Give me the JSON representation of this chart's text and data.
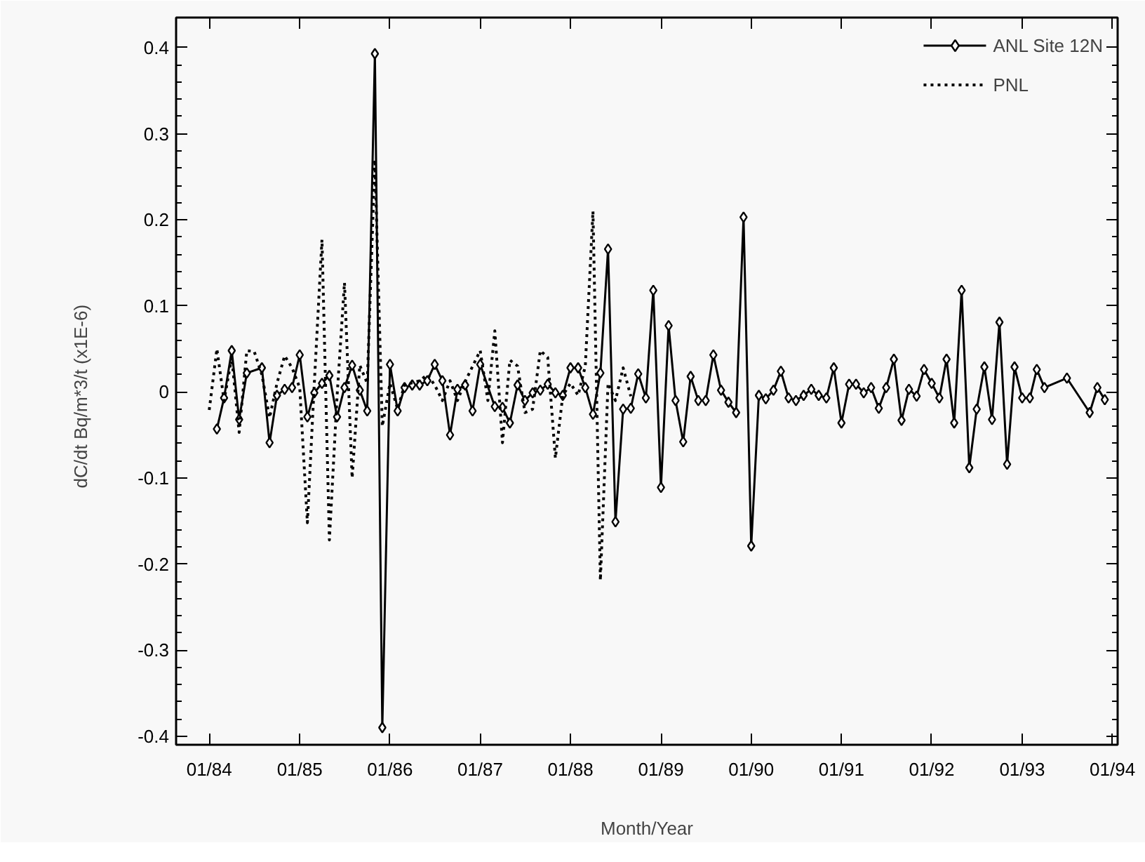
{
  "chart_data": {
    "type": "line",
    "xlabel": "Month/Year",
    "ylabel": "dC/dt    Bq/m*3/t    (x1E-6)",
    "xlim": [
      "1983-08-20",
      "1994-01-22"
    ],
    "ylim": [
      -0.41,
      0.435
    ],
    "xticks": [
      {
        "value": "1984-01",
        "label": "01/84"
      },
      {
        "value": "1985-01",
        "label": "01/85"
      },
      {
        "value": "1986-01",
        "label": "01/86"
      },
      {
        "value": "1987-01",
        "label": "01/87"
      },
      {
        "value": "1988-01",
        "label": "01/88"
      },
      {
        "value": "1989-01",
        "label": "01/89"
      },
      {
        "value": "1990-01",
        "label": "01/90"
      },
      {
        "value": "1991-01",
        "label": "01/91"
      },
      {
        "value": "1992-01",
        "label": "01/92"
      },
      {
        "value": "1993-01",
        "label": "01/93"
      },
      {
        "value": "1994-01",
        "label": "01/94"
      }
    ],
    "yticks": [
      -0.4,
      -0.3,
      -0.2,
      -0.1,
      0,
      0.1,
      0.2,
      0.3,
      0.4
    ],
    "legend": "top right",
    "series": [
      {
        "name": "ANL Site 12N",
        "color": "#000000",
        "marker": "diamond",
        "line_style": "solid",
        "x": [
          "1984-02",
          "1984-03",
          "1984-04",
          "1984-05",
          "1984-06",
          "1984-08",
          "1984-09",
          "1984-10",
          "1984-11",
          "1984-12",
          "1985-01",
          "1985-02",
          "1985-03",
          "1985-04",
          "1985-05",
          "1985-06",
          "1985-07",
          "1985-08",
          "1985-09",
          "1985-10",
          "1985-11",
          "1985-12",
          "1986-01",
          "1986-02",
          "1986-03",
          "1986-04",
          "1986-05",
          "1986-06",
          "1986-07",
          "1986-08",
          "1986-09",
          "1986-10",
          "1986-11",
          "1986-12",
          "1987-01",
          "1987-03",
          "1987-04",
          "1987-05",
          "1987-06",
          "1987-07",
          "1987-08",
          "1987-09",
          "1987-10",
          "1987-11",
          "1987-12",
          "1988-01",
          "1988-02",
          "1988-03",
          "1988-04",
          "1988-05",
          "1988-06",
          "1988-07",
          "1988-08",
          "1988-09",
          "1988-10",
          "1988-11",
          "1988-12",
          "1989-01",
          "1989-02",
          "1989-03",
          "1989-04",
          "1989-05",
          "1989-06",
          "1989-07",
          "1989-08",
          "1989-09",
          "1989-10",
          "1989-11",
          "1989-12",
          "1990-01",
          "1990-02",
          "1990-03",
          "1990-04",
          "1990-05",
          "1990-06",
          "1990-07",
          "1990-08",
          "1990-09",
          "1990-10",
          "1990-11",
          "1990-12",
          "1991-01",
          "1991-02",
          "1991-03",
          "1991-04",
          "1991-05",
          "1991-06",
          "1991-07",
          "1991-08",
          "1991-09",
          "1991-10",
          "1991-11",
          "1991-12",
          "1992-01",
          "1992-02",
          "1992-03",
          "1992-04",
          "1992-05",
          "1992-06",
          "1992-07",
          "1992-08",
          "1992-09",
          "1992-10",
          "1992-11",
          "1992-12",
          "1993-01",
          "1993-02",
          "1993-03",
          "1993-04",
          "1993-07",
          "1993-10",
          "1993-11",
          "1993-12"
        ],
        "values": [
          -0.043,
          -0.007,
          0.048,
          -0.032,
          0.022,
          0.028,
          -0.059,
          -0.004,
          0.003,
          0.005,
          0.043,
          -0.029,
          -0.001,
          0.01,
          0.019,
          -0.029,
          0.005,
          0.031,
          0.002,
          -0.022,
          0.393,
          -0.39,
          0.032,
          -0.022,
          0.005,
          0.008,
          0.008,
          0.013,
          0.032,
          0.013,
          -0.05,
          0.003,
          0.008,
          -0.022,
          0.032,
          -0.017,
          -0.018,
          -0.036,
          0.008,
          -0.01,
          -0.001,
          0.002,
          0.009,
          -0.001,
          -0.004,
          0.028,
          0.028,
          0.005,
          -0.026,
          0.022,
          0.166,
          -0.151,
          -0.02,
          -0.019,
          0.021,
          -0.007,
          0.118,
          -0.111,
          0.077,
          -0.01,
          -0.058,
          0.018,
          -0.01,
          -0.01,
          0.043,
          0.002,
          -0.012,
          -0.024,
          0.203,
          -0.179,
          -0.004,
          -0.008,
          0.002,
          0.024,
          -0.007,
          -0.01,
          -0.004,
          0.003,
          -0.004,
          -0.007,
          0.028,
          -0.036,
          0.009,
          0.009,
          -0.001,
          0.005,
          -0.019,
          0.005,
          0.038,
          -0.033,
          0.003,
          -0.005,
          0.026,
          0.01,
          -0.007,
          0.038,
          -0.036,
          0.118,
          -0.088,
          -0.02,
          0.029,
          -0.032,
          0.081,
          -0.084,
          0.029,
          -0.007,
          -0.007,
          0.026,
          0.005,
          0.016,
          -0.024,
          0.005,
          -0.009
        ]
      },
      {
        "name": "PNL",
        "color": "#000000",
        "marker": "none",
        "line_style": "dotted",
        "x": [
          "1984-01",
          "1984-02",
          "1984-03",
          "1984-04",
          "1984-05",
          "1984-06",
          "1984-07",
          "1984-08",
          "1984-09",
          "1984-10",
          "1984-11",
          "1984-12",
          "1985-01",
          "1985-02",
          "1985-03",
          "1985-04",
          "1985-05",
          "1985-06",
          "1985-07",
          "1985-08",
          "1985-09",
          "1985-10",
          "1985-11",
          "1985-12",
          "1986-01",
          "1986-02",
          "1986-03",
          "1986-05",
          "1986-06",
          "1986-07",
          "1986-08",
          "1986-09",
          "1986-10",
          "1986-11",
          "1987-01",
          "1987-02",
          "1987-03",
          "1987-04",
          "1987-05",
          "1987-06",
          "1987-07",
          "1987-08",
          "1987-09",
          "1987-10",
          "1987-11",
          "1987-12",
          "1988-01",
          "1988-02",
          "1988-03",
          "1988-04",
          "1988-05",
          "1988-06",
          "1988-07",
          "1988-08",
          "1988-09"
        ],
        "values": [
          -0.021,
          0.05,
          -0.01,
          0.04,
          -0.047,
          0.048,
          0.047,
          0.02,
          -0.03,
          0.01,
          0.042,
          0.028,
          0.005,
          -0.152,
          0.01,
          0.177,
          -0.172,
          -0.005,
          0.127,
          -0.1,
          0.031,
          0.01,
          0.27,
          -0.04,
          0.01,
          -0.02,
          0.008,
          0.013,
          0.02,
          0.008,
          -0.01,
          0.013,
          -0.01,
          0.012,
          0.048,
          -0.01,
          0.071,
          -0.059,
          0.037,
          0.03,
          -0.024,
          -0.02,
          0.048,
          0.04,
          -0.077,
          -0.004,
          0.01,
          -0.004,
          0.03,
          0.21,
          -0.219,
          0.01,
          -0.01,
          0.028,
          -0.005
        ]
      }
    ]
  }
}
